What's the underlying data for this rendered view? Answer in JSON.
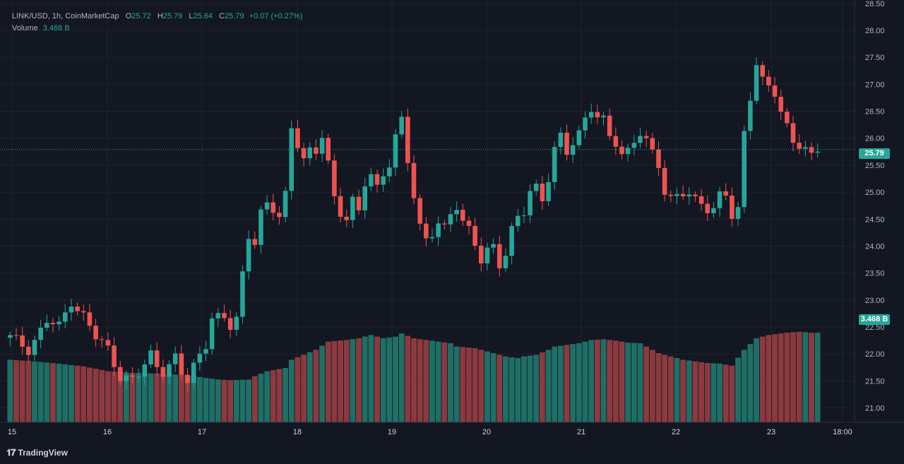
{
  "legend": {
    "symbol": "LINK/USD, 1h, CoinMarketCap",
    "o_label": "O",
    "o_value": "25.72",
    "h_label": "H",
    "h_value": "25.79",
    "l_label": "L",
    "l_value": "25.64",
    "c_label": "C",
    "c_value": "25.79",
    "change": "+0.07 (+0.27%)",
    "volume_label": "Volume",
    "volume_value": "3.468 B"
  },
  "price_tag": "25.79",
  "volume_tag": "3.468 B",
  "watermark": "TradingView",
  "colors": {
    "up": "#26a69a",
    "down": "#ef5350",
    "up_volume": "#1f6f66",
    "down_volume": "#8b3a40",
    "background": "#131722",
    "grid": "#1f2330"
  },
  "chart_data": {
    "type": "candlestick",
    "title": "LINK/USD, 1h, CoinMarketCap",
    "x_ticks": [
      "15",
      "16",
      "17",
      "18",
      "19",
      "20",
      "21",
      "22",
      "23",
      "18:00"
    ],
    "y_ticks": [
      "28.50",
      "28.00",
      "27.50",
      "27.00",
      "26.50",
      "26.00",
      "25.50",
      "25.00",
      "24.50",
      "24.00",
      "23.50",
      "23.00",
      "22.50",
      "22.00",
      "21.50",
      "21.00"
    ],
    "ylim": [
      20.85,
      28.55
    ],
    "last_price": 25.79,
    "close_path": [
      [
        0,
        22.3
      ],
      [
        3,
        22.1
      ],
      [
        6,
        22.6
      ],
      [
        8,
        22.5
      ],
      [
        10,
        23.0
      ],
      [
        12,
        22.7
      ],
      [
        14,
        22.3
      ],
      [
        16,
        22.1
      ],
      [
        18,
        21.6
      ],
      [
        20,
        21.5
      ],
      [
        21,
        21.6
      ],
      [
        22,
        21.8
      ],
      [
        23,
        22.0
      ],
      [
        24,
        21.8
      ],
      [
        25,
        21.7
      ],
      [
        27,
        21.9
      ],
      [
        28,
        21.6
      ],
      [
        29,
        21.5
      ],
      [
        30,
        21.8
      ],
      [
        32,
        22.2
      ],
      [
        33,
        22.7
      ],
      [
        35,
        22.6
      ],
      [
        36,
        22.5
      ],
      [
        37,
        22.7
      ],
      [
        38,
        23.5
      ],
      [
        39,
        24.2
      ],
      [
        40,
        24.1
      ],
      [
        41,
        24.6
      ],
      [
        42,
        24.7
      ],
      [
        44,
        24.6
      ],
      [
        45,
        25.0
      ],
      [
        46,
        26.2
      ],
      [
        47,
        25.9
      ],
      [
        48,
        25.6
      ],
      [
        49,
        25.7
      ],
      [
        50,
        25.7
      ],
      [
        51,
        26.1
      ],
      [
        52,
        25.6
      ],
      [
        53,
        24.9
      ],
      [
        54,
        24.6
      ],
      [
        55,
        24.5
      ],
      [
        56,
        24.8
      ],
      [
        57,
        24.6
      ],
      [
        58,
        25.2
      ],
      [
        59,
        25.4
      ],
      [
        60,
        25.1
      ],
      [
        61,
        25.3
      ],
      [
        62,
        25.5
      ],
      [
        63,
        26.0
      ],
      [
        64,
        26.3
      ],
      [
        65,
        25.6
      ],
      [
        66,
        25.0
      ],
      [
        67,
        24.4
      ],
      [
        68,
        24.1
      ],
      [
        69,
        24.2
      ],
      [
        70,
        24.4
      ],
      [
        71,
        24.3
      ],
      [
        72,
        24.6
      ],
      [
        73,
        24.8
      ],
      [
        74,
        24.5
      ],
      [
        75,
        24.3
      ],
      [
        76,
        24.0
      ],
      [
        77,
        23.7
      ],
      [
        78,
        23.9
      ],
      [
        79,
        24.0
      ],
      [
        80,
        23.7
      ],
      [
        81,
        23.9
      ],
      [
        82,
        24.3
      ],
      [
        83,
        24.5
      ],
      [
        84,
        24.6
      ],
      [
        85,
        25.0
      ],
      [
        86,
        25.1
      ],
      [
        87,
        24.9
      ],
      [
        88,
        25.3
      ],
      [
        89,
        25.8
      ],
      [
        90,
        26.0
      ],
      [
        91,
        25.7
      ],
      [
        92,
        25.9
      ],
      [
        93,
        26.1
      ],
      [
        94,
        26.4
      ],
      [
        95,
        26.6
      ],
      [
        96,
        26.4
      ],
      [
        97,
        26.3
      ],
      [
        98,
        26.0
      ],
      [
        99,
        25.9
      ],
      [
        100,
        25.7
      ],
      [
        101,
        25.8
      ],
      [
        102,
        26.0
      ],
      [
        103,
        26.1
      ],
      [
        104,
        25.9
      ],
      [
        105,
        25.7
      ],
      [
        106,
        25.5
      ],
      [
        107,
        25.0
      ],
      [
        108,
        24.9
      ],
      [
        109,
        25.0
      ],
      [
        110,
        25.0
      ],
      [
        111,
        24.9
      ],
      [
        112,
        24.8
      ],
      [
        113,
        24.8
      ],
      [
        114,
        24.7
      ],
      [
        115,
        24.7
      ],
      [
        116,
        25.0
      ],
      [
        117,
        25.0
      ],
      [
        118,
        24.5
      ],
      [
        119,
        24.6
      ],
      [
        120,
        26.1
      ],
      [
        121,
        26.8
      ],
      [
        122,
        27.4
      ],
      [
        123,
        27.1
      ],
      [
        124,
        27.0
      ],
      [
        125,
        26.8
      ],
      [
        126,
        26.4
      ],
      [
        127,
        26.2
      ],
      [
        128,
        26.0
      ],
      [
        129,
        25.9
      ],
      [
        130,
        25.8
      ],
      [
        131,
        25.7
      ],
      [
        132,
        25.79
      ]
    ],
    "volume_path": [
      [
        0,
        1.9
      ],
      [
        4,
        1.85
      ],
      [
        8,
        1.78
      ],
      [
        12,
        1.7
      ],
      [
        16,
        1.55
      ],
      [
        20,
        1.5
      ],
      [
        24,
        1.48
      ],
      [
        28,
        1.44
      ],
      [
        30,
        1.4
      ],
      [
        34,
        1.3
      ],
      [
        36,
        1.28
      ],
      [
        39,
        1.3
      ],
      [
        40,
        1.4
      ],
      [
        42,
        1.55
      ],
      [
        45,
        1.65
      ],
      [
        46,
        1.9
      ],
      [
        48,
        2.05
      ],
      [
        50,
        2.2
      ],
      [
        52,
        2.45
      ],
      [
        55,
        2.5
      ],
      [
        57,
        2.55
      ],
      [
        59,
        2.65
      ],
      [
        61,
        2.55
      ],
      [
        63,
        2.6
      ],
      [
        64,
        2.7
      ],
      [
        66,
        2.55
      ],
      [
        68,
        2.5
      ],
      [
        70,
        2.45
      ],
      [
        72,
        2.4
      ],
      [
        73,
        2.3
      ],
      [
        76,
        2.25
      ],
      [
        79,
        2.1
      ],
      [
        81,
        2.0
      ],
      [
        83,
        1.95
      ],
      [
        84,
        2.0
      ],
      [
        86,
        2.05
      ],
      [
        88,
        2.2
      ],
      [
        89,
        2.3
      ],
      [
        91,
        2.35
      ],
      [
        93,
        2.4
      ],
      [
        95,
        2.5
      ],
      [
        97,
        2.52
      ],
      [
        99,
        2.48
      ],
      [
        101,
        2.42
      ],
      [
        103,
        2.4
      ],
      [
        104,
        2.3
      ],
      [
        106,
        2.1
      ],
      [
        108,
        2.0
      ],
      [
        110,
        1.9
      ],
      [
        112,
        1.85
      ],
      [
        114,
        1.8
      ],
      [
        116,
        1.78
      ],
      [
        118,
        1.72
      ],
      [
        120,
        2.2
      ],
      [
        122,
        2.55
      ],
      [
        124,
        2.65
      ],
      [
        127,
        2.72
      ],
      [
        129,
        2.75
      ],
      [
        131,
        2.72
      ],
      [
        132,
        2.72
      ]
    ],
    "n_candles": 133,
    "volume_ylim": [
      0,
      3.6
    ]
  }
}
